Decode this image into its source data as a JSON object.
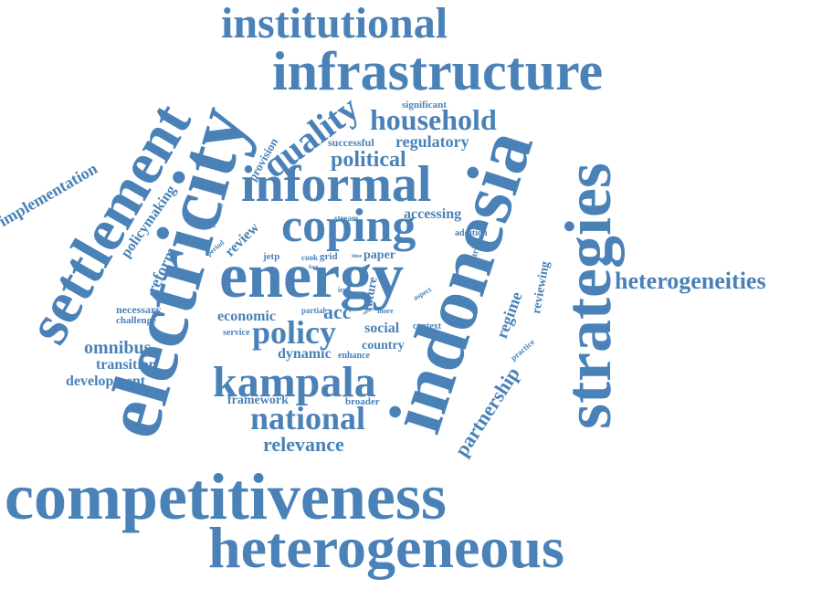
{
  "cloud": {
    "color": "#4a82b8",
    "words": [
      "institutional",
      "infrastructure",
      "electricity",
      "settlement",
      "indonesia",
      "strategies",
      "informal",
      "coping",
      "energy",
      "household",
      "quality",
      "political",
      "regulatory",
      "successful",
      "significant",
      "provision",
      "implementation",
      "policymaking",
      "reform",
      "review",
      "relevant",
      "period",
      "stream",
      "accessing",
      "addition",
      "urban",
      "cook",
      "grid",
      "jetp",
      "time",
      "paper",
      "face",
      "iron",
      "future",
      "aspect",
      "regime",
      "reviewing",
      "heterogeneities",
      "necessary",
      "challenge",
      "economic",
      "partial",
      "acc",
      "policy",
      "social",
      "offer",
      "more",
      "context",
      "service",
      "enhance",
      "practice",
      "omnibus",
      "dynamic",
      "country",
      "transition",
      "development",
      "kampala",
      "partnership",
      "framework",
      "broader",
      "national",
      "relevance",
      "competitiveness",
      "heterogeneous"
    ]
  }
}
